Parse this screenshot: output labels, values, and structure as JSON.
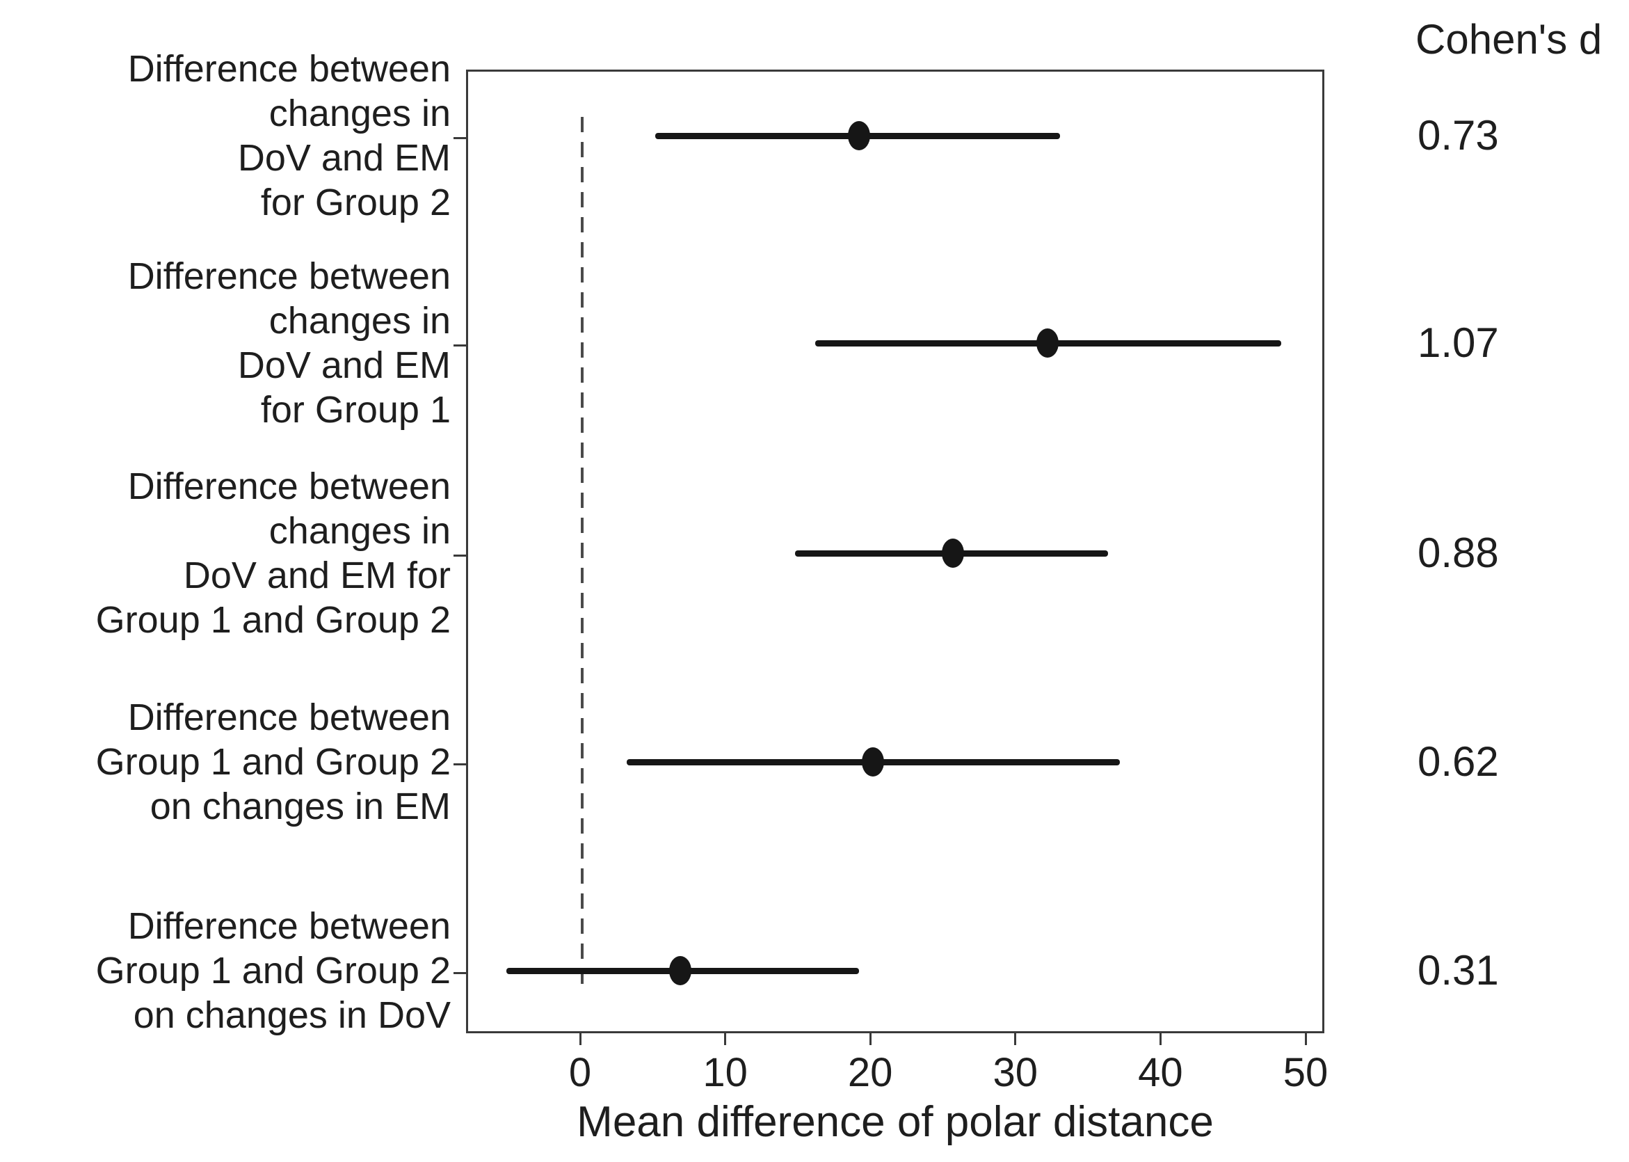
{
  "figure": {
    "right_column_header": "Cohen's d"
  },
  "chart_data": {
    "type": "scatter",
    "subtype": "forest-plot-horizontal-errorbars",
    "title": "",
    "xlabel": "Mean difference of polar distance",
    "ylabel": "",
    "x_ticks": [
      0,
      10,
      20,
      30,
      40,
      50
    ],
    "xlim": [
      -7.9,
      51.4
    ],
    "reference_line_x": 0,
    "reference_line_style": "dashed",
    "grid": false,
    "legend": "none",
    "right_column_header": "Cohen's d",
    "rows": [
      {
        "label": "Difference between changes in DoV and EM for Group 2",
        "label_lines": [
          "Difference between",
          "changes in",
          "DoV and EM",
          "for Group 2"
        ],
        "mean": 19.2,
        "ci_low": 5.2,
        "ci_high": 33.1,
        "cohens_d": "0.73"
      },
      {
        "label": "Difference between changes in DoV and EM for Group 1",
        "label_lines": [
          "Difference between",
          "changes in",
          "DoV and EM",
          "for Group 1"
        ],
        "mean": 32.2,
        "ci_low": 16.2,
        "ci_high": 48.3,
        "cohens_d": "1.07"
      },
      {
        "label": "Difference between changes in DoV and EM for Group 1 and Group 2",
        "label_lines": [
          "Difference between",
          "changes in",
          "DoV and EM for",
          "Group 1 and Group 2"
        ],
        "mean": 25.7,
        "ci_low": 14.8,
        "ci_high": 36.4,
        "cohens_d": "0.88"
      },
      {
        "label": "Difference between Group 1 and Group 2 on changes in EM",
        "label_lines": [
          "Difference between",
          "Group 1 and Group 2",
          "on changes in EM"
        ],
        "mean": 20.2,
        "ci_low": 3.2,
        "ci_high": 37.2,
        "cohens_d": "0.62"
      },
      {
        "label": "Difference between Group 1 and Group 2 on changes in DoV",
        "label_lines": [
          "Difference between",
          "Group 1 and Group 2",
          "on changes in DoV"
        ],
        "mean": 6.9,
        "ci_low": -5.1,
        "ci_high": 19.2,
        "cohens_d": "0.31"
      }
    ],
    "colors": {
      "marker": "#161616",
      "error_bar": "#161616",
      "spine": "#3a3a3a",
      "reference_line": "#4a4a4a",
      "text": "#1e1e1e",
      "background": "#ffffff"
    }
  }
}
